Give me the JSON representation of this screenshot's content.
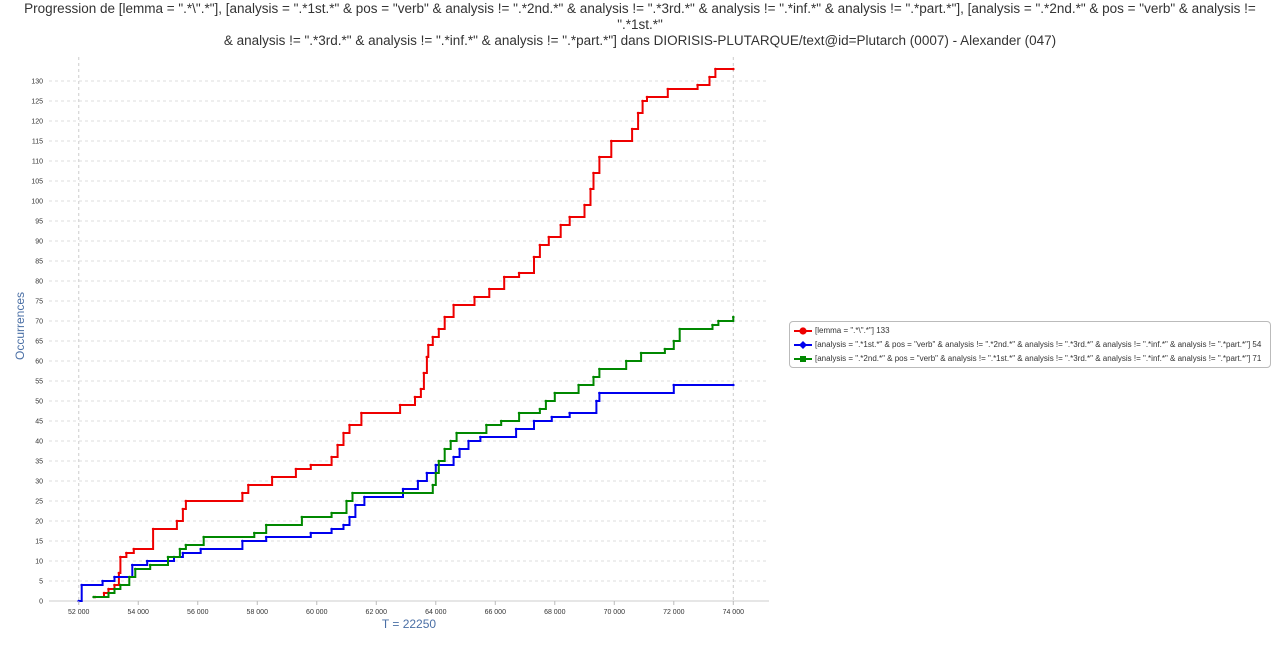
{
  "chart_data": {
    "type": "line",
    "title": "Progression de [lemma = \".*\\\".*\"], [analysis = \".*1st.*\" & pos = \"verb\" & analysis != \".*2nd.*\" & analysis != \".*3rd.*\" & analysis != \".*inf.*\" & analysis != \".*part.*\"], [analysis = \".*2nd.*\" & pos = \"verb\" & analysis != \".*1st.*\"\n& analysis != \".*3rd.*\" & analysis != \".*inf.*\" & analysis != \".*part.*\"] dans DIORISIS-PLUTARQUE/text@id=Plutarch (0007) - Alexander (047)",
    "xlabel": "T = 22250",
    "ylabel": "Occurrences",
    "xlim": [
      51000,
      75200
    ],
    "ylim": [
      0,
      136
    ],
    "x_ticks": [
      52000,
      54000,
      56000,
      58000,
      60000,
      62000,
      64000,
      66000,
      68000,
      70000,
      72000,
      74000
    ],
    "x_tick_labels": [
      "52 000",
      "54 000",
      "56 000",
      "58 000",
      "60 000",
      "62 000",
      "64 000",
      "66 000",
      "68 000",
      "70 000",
      "72 000",
      "74 000"
    ],
    "y_ticks": [
      0,
      5,
      10,
      15,
      20,
      25,
      30,
      35,
      40,
      45,
      50,
      55,
      60,
      65,
      70,
      75,
      80,
      85,
      90,
      95,
      100,
      105,
      110,
      115,
      120,
      125,
      130
    ],
    "grid": true,
    "legend_position": "right",
    "x_end": 74000,
    "series": [
      {
        "name": "[lemma = \".*\\\".*\"] 133",
        "color": "#ee0000",
        "marker": "circle",
        "x": [
          52550,
          52850,
          53000,
          53200,
          53350,
          53400,
          53600,
          53850,
          54500,
          55300,
          55500,
          55600,
          57500,
          57700,
          58500,
          59300,
          59800,
          60500,
          60700,
          60900,
          61100,
          61500,
          62800,
          63300,
          63500,
          63600,
          63700,
          63750,
          63900,
          64100,
          64300,
          64600,
          65300,
          65800,
          66300,
          66800,
          67300,
          67500,
          67800,
          68200,
          68500,
          69000,
          69200,
          69300,
          69500,
          69900,
          70600,
          70800,
          70950,
          71100,
          71800,
          72800,
          73200,
          73400,
          74000
        ],
        "y": [
          1,
          2,
          3,
          4,
          7,
          11,
          12,
          13,
          18,
          20,
          23,
          25,
          27,
          29,
          31,
          33,
          34,
          36,
          39,
          42,
          44,
          47,
          49,
          51,
          53,
          57,
          61,
          64,
          66,
          68,
          71,
          74,
          76,
          78,
          81,
          82,
          86,
          89,
          91,
          94,
          96,
          99,
          103,
          107,
          111,
          115,
          118,
          122,
          125,
          126,
          128,
          129,
          131,
          133,
          133
        ]
      },
      {
        "name": "[analysis = \".*1st.*\" & pos = \"verb\" & analysis != \".*2nd.*\" & analysis != \".*3rd.*\" & analysis != \".*inf.*\" & analysis != \".*part.*\"] 54",
        "color": "#0000ee",
        "marker": "diamond",
        "x": [
          52000,
          52100,
          52800,
          53200,
          53800,
          54300,
          55200,
          55500,
          56100,
          57500,
          58300,
          59800,
          60500,
          60900,
          61100,
          61300,
          61600,
          62900,
          63400,
          63700,
          64000,
          64600,
          64800,
          65100,
          65500,
          66700,
          67300,
          67900,
          68500,
          69400,
          69500,
          72000,
          74000
        ],
        "y": [
          0,
          4,
          5,
          6,
          9,
          10,
          11,
          12,
          13,
          15,
          16,
          17,
          18,
          19,
          21,
          24,
          26,
          28,
          30,
          32,
          34,
          36,
          38,
          40,
          41,
          43,
          45,
          46,
          47,
          50,
          52,
          54,
          54
        ]
      },
      {
        "name": "[analysis = \".*2nd.*\" & pos = \"verb\" & analysis != \".*1st.*\" & analysis != \".*3rd.*\" & analysis != \".*inf.*\" & analysis != \".*part.*\"] 71",
        "color": "#008800",
        "marker": "square",
        "x": [
          52500,
          53000,
          53200,
          53400,
          53700,
          53900,
          54400,
          55000,
          55400,
          55600,
          56200,
          57900,
          58300,
          59500,
          60500,
          61000,
          61200,
          63900,
          64000,
          64100,
          64300,
          64500,
          64700,
          65700,
          66200,
          66800,
          67500,
          67700,
          68000,
          68800,
          69300,
          69500,
          70400,
          70900,
          71700,
          72000,
          72200,
          73300,
          73500,
          74000
        ],
        "y": [
          1,
          2,
          3,
          4,
          6,
          8,
          9,
          11,
          13,
          14,
          16,
          17,
          19,
          21,
          22,
          25,
          27,
          29,
          32,
          35,
          38,
          40,
          42,
          44,
          45,
          47,
          48,
          50,
          52,
          54,
          56,
          58,
          60,
          62,
          63,
          65,
          68,
          69,
          70,
          71
        ]
      }
    ]
  }
}
